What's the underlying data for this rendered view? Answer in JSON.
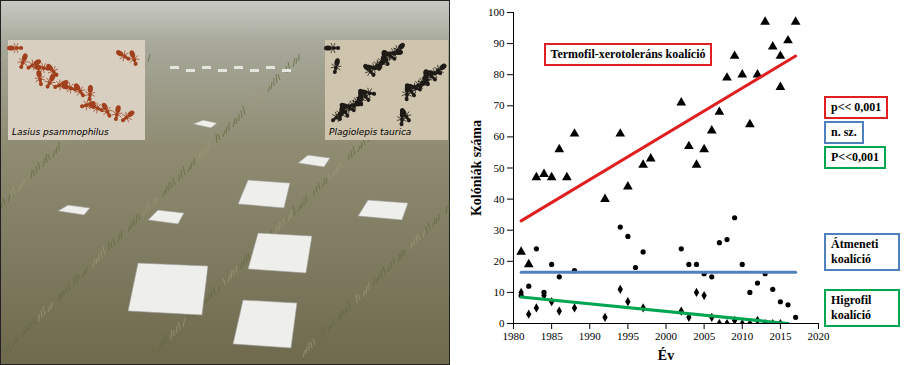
{
  "photo": {
    "insets": [
      {
        "label": "Lasius psammophilus"
      },
      {
        "label": "Plagiolepis taurica"
      }
    ]
  },
  "chart_data": {
    "type": "scatter",
    "x_label": "Év",
    "y_label": "Kolóniák száma",
    "xlim": [
      1980,
      2020
    ],
    "xticks": [
      1980,
      1985,
      1990,
      1995,
      2000,
      2005,
      2010,
      2015,
      2020
    ],
    "ylim": [
      0,
      100
    ],
    "yticks": [
      0,
      10,
      20,
      30,
      40,
      50,
      60,
      70,
      80,
      90,
      100
    ],
    "grid": false,
    "series": [
      {
        "name": "Termofil-xerotoleráns koalíció",
        "color": "#e02020",
        "marker": "triangle",
        "p_value": "p<< 0,001",
        "x": [
          1981,
          1982,
          1983,
          1984,
          1985,
          1986,
          1987,
          1988,
          1992,
          1994,
          1995,
          1997,
          1998,
          2002,
          2003,
          2004,
          2005,
          2006,
          2007,
          2008,
          2009,
          2010,
          2011,
          2012,
          2013,
          2014,
          2015,
          2015,
          2016,
          2017
        ],
        "values": [
          23,
          19,
          47,
          48,
          47,
          56,
          47,
          61,
          40,
          61,
          44,
          51,
          53,
          71,
          57,
          51,
          56,
          62,
          68,
          79,
          86,
          80,
          64,
          80,
          97,
          89,
          76,
          86,
          91,
          97
        ],
        "trend": {
          "x": [
            1981,
            2017
          ],
          "values": [
            33,
            86
          ]
        }
      },
      {
        "name": "Átmeneti koalíció",
        "color": "#4f81bd",
        "marker": "circle",
        "p_value": "n. sz.",
        "x": [
          1981,
          1982,
          1983,
          1984,
          1985,
          1986,
          1988,
          1994,
          1995,
          1996,
          1997,
          2002,
          2003,
          2004,
          2005,
          2006,
          2007,
          2008,
          2009,
          2010,
          2011,
          2012,
          2013,
          2014,
          2015,
          2016,
          2017
        ],
        "values": [
          9,
          12,
          24,
          10,
          19,
          15,
          17,
          31,
          28,
          18,
          23,
          24,
          19,
          19,
          16,
          15,
          26,
          27,
          34,
          19,
          10,
          13,
          16,
          11,
          7,
          6,
          2
        ],
        "trend": {
          "x": [
            1981,
            2017
          ],
          "values": [
            16.5,
            16.5
          ]
        }
      },
      {
        "name": "Higrofil koalíció",
        "color": "#00a650",
        "marker": "diamond",
        "p_value": "P<<0,001",
        "x": [
          1981,
          1982,
          1983,
          1984,
          1985,
          1986,
          1988,
          1992,
          1994,
          1995,
          1997,
          2002,
          2003,
          2004,
          2005,
          2006,
          2007,
          2008,
          2009,
          2010,
          2011,
          2012,
          2013,
          2014,
          2015
        ],
        "values": [
          10,
          3,
          5,
          9,
          7,
          4,
          5,
          2,
          11,
          7,
          5,
          4,
          2,
          10,
          9,
          2,
          0,
          0,
          1,
          0,
          0,
          1,
          0,
          0,
          0
        ],
        "trend": {
          "x": [
            1981,
            2016
          ],
          "values": [
            8.5,
            0
          ]
        }
      }
    ]
  }
}
